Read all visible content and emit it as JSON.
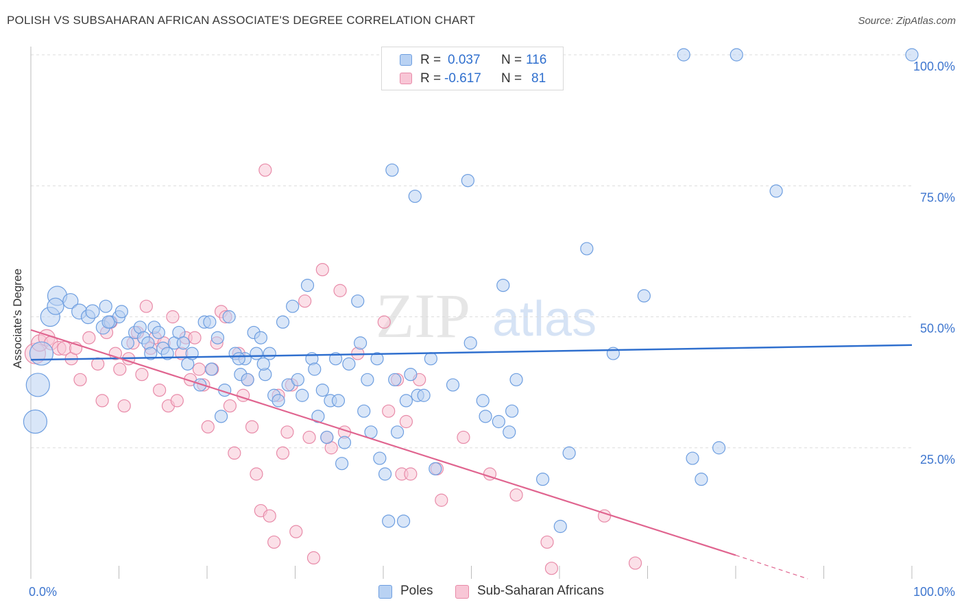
{
  "header": {
    "title": "POLISH VS SUBSAHARAN AFRICAN ASSOCIATE'S DEGREE CORRELATION CHART",
    "source": "Source: ZipAtlas.com"
  },
  "watermark": {
    "zip": "ZIP",
    "atlas": "atlas"
  },
  "legend_top": {
    "rows": [
      {
        "r_label": "R =",
        "r_value": "0.037",
        "n_label": "N =",
        "n_value": "116"
      },
      {
        "r_label": "R =",
        "r_value": "-0.617",
        "n_label": "N =",
        "n_value": "81"
      }
    ]
  },
  "legend_bottom": {
    "items": [
      {
        "label": "Poles"
      },
      {
        "label": "Sub-Saharan Africans"
      }
    ]
  },
  "colors": {
    "poles_fill": "#b9d2f3",
    "poles_stroke": "#6d9ee0",
    "poles_line": "#2f6fce",
    "ssa_fill": "#f8c6d6",
    "ssa_stroke": "#e88aa8",
    "ssa_line": "#e0648f",
    "tick_label": "#3e76cf",
    "grid": "#dcdcdc"
  },
  "chart_data": {
    "type": "scatter",
    "title": "POLISH VS SUBSAHARAN AFRICAN ASSOCIATE'S DEGREE CORRELATION CHART",
    "xlabel": "",
    "ylabel": "Associate's Degree",
    "xlim": [
      0,
      100
    ],
    "ylim": [
      0,
      100
    ],
    "x_tick_labels": [
      "0.0%",
      "100.0%"
    ],
    "y_tick_labels": [
      "25.0%",
      "50.0%",
      "75.0%",
      "100.0%"
    ],
    "y_ticks": [
      25,
      50,
      75,
      100
    ],
    "grid": true,
    "legend_position": "top-center",
    "series": [
      {
        "name": "Poles",
        "r": 0.037,
        "n": 116,
        "trend": {
          "x": [
            0,
            100
          ],
          "y": [
            41.8,
            44.6
          ]
        },
        "points": [
          [
            0.5,
            30,
            17
          ],
          [
            0.8,
            37,
            17
          ],
          [
            1.2,
            43,
            17
          ],
          [
            2.2,
            50,
            14
          ],
          [
            3,
            54,
            14
          ],
          [
            2.8,
            52,
            12
          ],
          [
            4.5,
            53,
            11
          ],
          [
            5.5,
            51,
            11
          ],
          [
            6.5,
            50,
            10
          ],
          [
            7,
            51,
            10
          ],
          [
            8.2,
            48,
            10
          ],
          [
            8.5,
            52,
            9
          ],
          [
            9,
            49,
            9
          ],
          [
            10,
            50,
            9
          ],
          [
            10.3,
            51,
            9
          ],
          [
            11,
            45,
            9
          ],
          [
            11.8,
            47,
            9
          ],
          [
            12.4,
            48,
            9
          ],
          [
            12.8,
            46,
            9
          ],
          [
            13.3,
            45,
            9
          ],
          [
            14,
            48,
            9
          ],
          [
            14.5,
            47,
            9
          ],
          [
            15,
            44,
            9
          ],
          [
            15.5,
            43,
            9
          ],
          [
            16.3,
            45,
            9
          ],
          [
            16.8,
            47,
            9
          ],
          [
            17.3,
            45,
            9
          ],
          [
            17.8,
            41,
            9
          ],
          [
            18.3,
            43,
            9
          ],
          [
            19.2,
            37,
            9
          ],
          [
            19.7,
            49,
            9
          ],
          [
            20.3,
            49,
            9
          ],
          [
            20.5,
            40,
            9
          ],
          [
            21.2,
            46,
            9
          ],
          [
            21.6,
            31,
            9
          ],
          [
            22,
            36,
            9
          ],
          [
            22.5,
            50,
            9
          ],
          [
            23.2,
            43,
            9
          ],
          [
            23.8,
            39,
            9
          ],
          [
            24.3,
            42,
            9
          ],
          [
            24.6,
            38,
            9
          ],
          [
            25.3,
            47,
            9
          ],
          [
            25.6,
            43,
            9
          ],
          [
            26.1,
            46,
            9
          ],
          [
            26.6,
            39,
            9
          ],
          [
            27.1,
            43,
            9
          ],
          [
            27.6,
            35,
            9
          ],
          [
            28.1,
            34,
            9
          ],
          [
            28.6,
            49,
            9
          ],
          [
            29.2,
            37,
            9
          ],
          [
            29.7,
            52,
            9
          ],
          [
            30.3,
            38,
            9
          ],
          [
            30.8,
            35,
            9
          ],
          [
            31.4,
            56,
            9
          ],
          [
            31.9,
            42,
            9
          ],
          [
            32.2,
            40,
            9
          ],
          [
            32.6,
            31,
            9
          ],
          [
            33.1,
            36,
            9
          ],
          [
            33.6,
            27,
            9
          ],
          [
            34,
            34,
            9
          ],
          [
            34.6,
            42,
            9
          ],
          [
            34.9,
            34,
            9
          ],
          [
            35.3,
            22,
            9
          ],
          [
            35.6,
            26,
            9
          ],
          [
            36.1,
            41,
            9
          ],
          [
            37.1,
            53,
            9
          ],
          [
            37.4,
            45,
            9
          ],
          [
            37.8,
            32,
            9
          ],
          [
            38.2,
            38,
            9
          ],
          [
            38.6,
            28,
            9
          ],
          [
            39.3,
            42,
            9
          ],
          [
            39.6,
            23,
            9
          ],
          [
            40.2,
            20,
            9
          ],
          [
            40.6,
            11,
            9
          ],
          [
            41,
            78,
            9
          ],
          [
            41.3,
            38,
            9
          ],
          [
            41.6,
            28,
            9
          ],
          [
            42.3,
            11,
            9
          ],
          [
            42.6,
            34,
            9
          ],
          [
            43.1,
            39,
            9
          ],
          [
            43.6,
            73,
            9
          ],
          [
            43.9,
            35,
            9
          ],
          [
            44.6,
            35,
            9
          ],
          [
            45.4,
            42,
            9
          ],
          [
            45.9,
            21,
            9
          ],
          [
            47.9,
            37,
            9
          ],
          [
            49.6,
            76,
            9
          ],
          [
            49.9,
            45,
            9
          ],
          [
            51.3,
            34,
            9
          ],
          [
            51.6,
            31,
            9
          ],
          [
            53.1,
            30,
            9
          ],
          [
            53.6,
            56,
            9
          ],
          [
            54.3,
            28,
            9
          ],
          [
            54.6,
            32,
            9
          ],
          [
            55.1,
            38,
            9
          ],
          [
            58.1,
            19,
            9
          ],
          [
            60.1,
            10,
            9
          ],
          [
            61.1,
            24,
            9
          ],
          [
            63.1,
            63,
            9
          ],
          [
            66.1,
            43,
            9
          ],
          [
            69.6,
            54,
            9
          ],
          [
            75.1,
            23,
            9
          ],
          [
            76.1,
            19,
            9
          ],
          [
            78.1,
            25,
            9
          ],
          [
            74.1,
            100,
            9
          ],
          [
            80.1,
            100,
            9
          ],
          [
            84.6,
            74,
            9
          ],
          [
            100,
            100,
            9
          ],
          [
            23.6,
            42,
            9
          ],
          [
            26.4,
            41,
            9
          ],
          [
            8.8,
            49,
            9
          ],
          [
            13.6,
            43,
            9
          ]
        ]
      },
      {
        "name": "Sub-Saharan Africans",
        "r": -0.617,
        "n": 81,
        "trend": {
          "x": [
            0,
            80
          ],
          "y": [
            47.5,
            4.5
          ]
        },
        "trend_dashed": {
          "x": [
            80,
            100
          ],
          "y": [
            4.5,
            -6.5
          ]
        },
        "points": [
          [
            0.5,
            43,
            15
          ],
          [
            1,
            45,
            12
          ],
          [
            1.8,
            46,
            12
          ],
          [
            2.3,
            45,
            10
          ],
          [
            3.2,
            44,
            10
          ],
          [
            3.8,
            44,
            10
          ],
          [
            4.6,
            42,
            9
          ],
          [
            5.1,
            44,
            9
          ],
          [
            5.6,
            38,
            9
          ],
          [
            6.6,
            46,
            9
          ],
          [
            7.6,
            41,
            9
          ],
          [
            8.1,
            34,
            9
          ],
          [
            8.6,
            47,
            9
          ],
          [
            9.1,
            49,
            9
          ],
          [
            9.6,
            43,
            9
          ],
          [
            10.1,
            40,
            9
          ],
          [
            10.6,
            33,
            9
          ],
          [
            11.1,
            42,
            9
          ],
          [
            11.6,
            45,
            9
          ],
          [
            12.1,
            47,
            9
          ],
          [
            12.6,
            39,
            9
          ],
          [
            13.1,
            52,
            9
          ],
          [
            13.6,
            44,
            9
          ],
          [
            14.1,
            46,
            9
          ],
          [
            14.6,
            36,
            9
          ],
          [
            15.1,
            45,
            9
          ],
          [
            15.6,
            33,
            9
          ],
          [
            16.1,
            50,
            9
          ],
          [
            16.6,
            34,
            9
          ],
          [
            17.1,
            43,
            9
          ],
          [
            17.6,
            46,
            9
          ],
          [
            18.1,
            38,
            9
          ],
          [
            18.6,
            46,
            9
          ],
          [
            19.1,
            40,
            9
          ],
          [
            19.6,
            37,
            9
          ],
          [
            20.1,
            29,
            9
          ],
          [
            20.6,
            40,
            9
          ],
          [
            21.1,
            45,
            9
          ],
          [
            21.6,
            51,
            9
          ],
          [
            22.1,
            50,
            9
          ],
          [
            22.6,
            33,
            9
          ],
          [
            23.1,
            24,
            9
          ],
          [
            23.6,
            43,
            9
          ],
          [
            24.1,
            35,
            9
          ],
          [
            24.6,
            38,
            9
          ],
          [
            25.1,
            29,
            9
          ],
          [
            25.6,
            20,
            9
          ],
          [
            26.1,
            13,
            9
          ],
          [
            26.6,
            78,
            9
          ],
          [
            27.1,
            12,
            9
          ],
          [
            27.6,
            7,
            9
          ],
          [
            28.1,
            35,
            9
          ],
          [
            28.6,
            24,
            9
          ],
          [
            29.1,
            28,
            9
          ],
          [
            29.6,
            37,
            9
          ],
          [
            30.1,
            9,
            9
          ],
          [
            31.1,
            53,
            9
          ],
          [
            31.6,
            27,
            9
          ],
          [
            32.1,
            4,
            9
          ],
          [
            33.1,
            59,
            9
          ],
          [
            33.6,
            27,
            9
          ],
          [
            34.1,
            25,
            9
          ],
          [
            35.1,
            55,
            9
          ],
          [
            35.6,
            28,
            9
          ],
          [
            40.1,
            49,
            9
          ],
          [
            40.6,
            32,
            9
          ],
          [
            41.6,
            38,
            9
          ],
          [
            42.1,
            20,
            9
          ],
          [
            42.6,
            30,
            9
          ],
          [
            43.1,
            20,
            9
          ],
          [
            46.1,
            21,
            9
          ],
          [
            46.6,
            15,
            9
          ],
          [
            49.1,
            27,
            9
          ],
          [
            52.1,
            20,
            9
          ],
          [
            55.1,
            16,
            9
          ],
          [
            58.6,
            7,
            9
          ],
          [
            59.1,
            2,
            9
          ],
          [
            65.1,
            12,
            9
          ],
          [
            68.6,
            3,
            9
          ],
          [
            44.1,
            38,
            9
          ],
          [
            37.1,
            43,
            9
          ]
        ]
      }
    ]
  }
}
